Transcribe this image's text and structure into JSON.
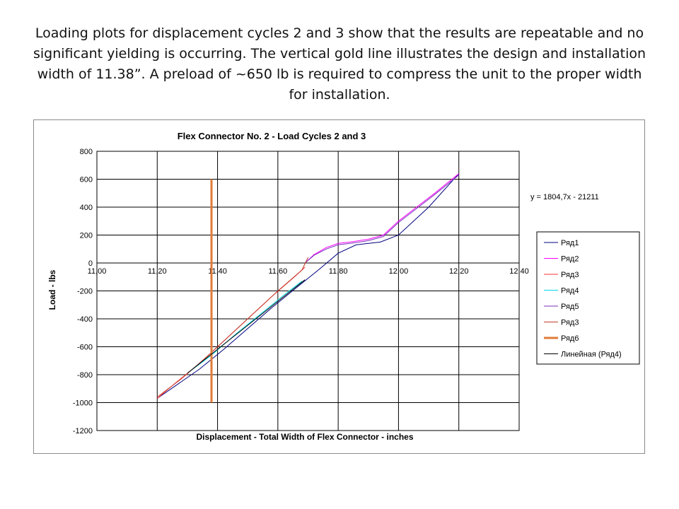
{
  "caption": "Loading plots for displacement cycles 2 and 3 show that the results are repeatable and no significant yielding is occurring.  The vertical gold line illustrates the design and installation width of 11.38”.  A preload of ~650 lb is required to compress the unit to the proper width for installation.",
  "chart_data": {
    "type": "line",
    "title": "Flex Connector No. 2 - Load Cycles 2 and 3",
    "xlabel": "Displacement  -  Total Width of Flex Connector  -  inches",
    "ylabel": "Load  -  lbs",
    "xlim": [
      11.0,
      12.4
    ],
    "ylim": [
      -1200,
      800
    ],
    "x_tick_labels": [
      "11,00",
      "11,20",
      "11,40",
      "11,60",
      "11,80",
      "12,00",
      "12,20",
      "12,40"
    ],
    "x_tick_values": [
      11.0,
      11.2,
      11.4,
      11.6,
      11.8,
      12.0,
      12.2,
      12.4
    ],
    "y_tick_labels": [
      "800",
      "600",
      "400",
      "200",
      "0",
      "-200",
      "-400",
      "-600",
      "-800",
      "-1000",
      "-1200"
    ],
    "y_tick_values": [
      800,
      600,
      400,
      200,
      0,
      -200,
      -400,
      -600,
      -800,
      -1000,
      -1200
    ],
    "grid": true,
    "legend_position": "right",
    "trendline_equation": "y = 1804,7x - 21211",
    "series": [
      {
        "name": "Ряд1",
        "color": "#000080",
        "width": 1,
        "x": [
          11.2,
          11.26,
          11.34,
          11.42,
          11.5,
          11.58,
          11.66,
          11.74,
          11.8,
          11.86,
          11.94,
          12.0,
          12.1,
          12.2
        ],
        "y": [
          -970,
          -880,
          -760,
          -620,
          -470,
          -320,
          -180,
          -40,
          70,
          130,
          150,
          200,
          400,
          640
        ]
      },
      {
        "name": "Ряд2",
        "color": "#ff00ff",
        "width": 1,
        "x": [
          11.69,
          11.72,
          11.76,
          11.8,
          11.84,
          11.9,
          11.95,
          12.0,
          12.06,
          12.12,
          12.2
        ],
        "y": [
          0,
          60,
          110,
          140,
          150,
          170,
          200,
          300,
          400,
          500,
          640
        ]
      },
      {
        "name": "Ряд3",
        "color": "#ff3333",
        "width": 1,
        "x": [
          11.2,
          11.26,
          11.34,
          11.42,
          11.5,
          11.58,
          11.66,
          11.69
        ],
        "y": [
          -970,
          -860,
          -720,
          -560,
          -400,
          -240,
          -90,
          -30
        ]
      },
      {
        "name": "Ряд4",
        "color": "#00d8e8",
        "width": 1,
        "x": [
          11.3,
          11.38,
          11.46,
          11.54,
          11.62,
          11.68
        ],
        "y": [
          -790,
          -660,
          -510,
          -370,
          -230,
          -130
        ]
      },
      {
        "name": "Ряд5",
        "color": "#7b2fbf",
        "width": 1,
        "x": [
          11.69,
          11.72,
          11.76,
          11.8,
          11.84,
          11.9,
          11.95,
          12.0,
          12.06,
          12.12,
          12.2
        ],
        "y": [
          0,
          55,
          100,
          130,
          140,
          160,
          190,
          290,
          390,
          490,
          630
        ]
      },
      {
        "name": "Ряд3",
        "color": "#c0392b",
        "width": 1,
        "x": [
          11.2,
          11.28,
          11.36,
          11.44,
          11.52,
          11.6,
          11.68,
          11.7
        ],
        "y": [
          -960,
          -830,
          -680,
          -520,
          -360,
          -200,
          -50,
          40
        ]
      },
      {
        "name": "Ряд6",
        "color": "#e07b39",
        "width": 3,
        "x": [
          11.38,
          11.38
        ],
        "y": [
          600,
          -1000
        ]
      },
      {
        "name": "Линейная (Ряд4)",
        "color": "#000000",
        "width": 1,
        "x": [
          11.3,
          11.69
        ],
        "y": [
          -790,
          -120
        ]
      }
    ]
  }
}
